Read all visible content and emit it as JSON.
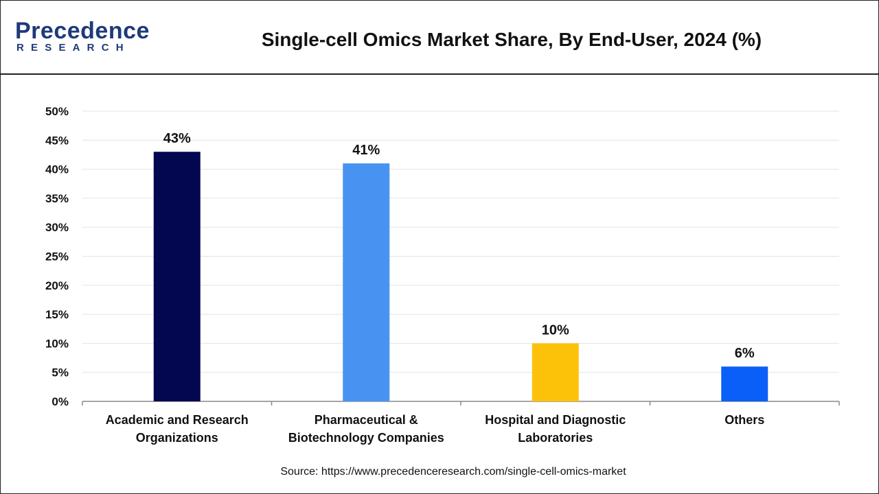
{
  "header": {
    "logo_line1": "Precedence",
    "logo_line2": "RESEARCH",
    "title": "Single-cell Omics Market Share, By End-User, 2024 (%)"
  },
  "chart_data": {
    "type": "bar",
    "title": "Single-cell Omics Market Share, By End-User, 2024 (%)",
    "categories": [
      [
        "Academic and Research",
        "Organizations"
      ],
      [
        "Pharmaceutical &",
        "Biotechnology Companies"
      ],
      [
        "Hospital and Diagnostic",
        "Laboratories"
      ],
      [
        "Others"
      ]
    ],
    "values": [
      43,
      41,
      10,
      6
    ],
    "value_labels": [
      "43%",
      "41%",
      "10%",
      "6%"
    ],
    "colors": [
      "#02074f",
      "#4893f2",
      "#fcc20a",
      "#0a5ff8"
    ],
    "ylim": [
      0,
      50
    ],
    "yticks": [
      "0%",
      "5%",
      "10%",
      "15%",
      "20%",
      "25%",
      "30%",
      "35%",
      "40%",
      "45%",
      "50%"
    ],
    "grid": true
  },
  "footer": {
    "source": "Source: https://www.precedenceresearch.com/single-cell-omics-market"
  }
}
